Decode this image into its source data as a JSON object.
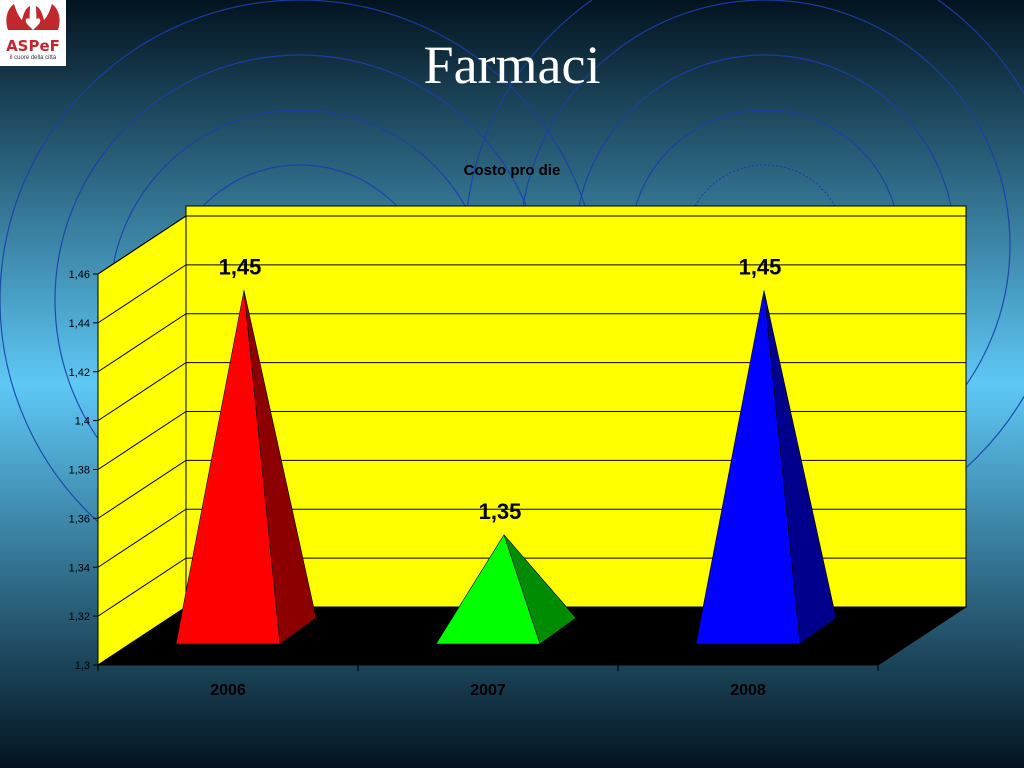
{
  "slide": {
    "title": "Farmaci",
    "logo": {
      "name": "ASPeF",
      "tagline": "il cuore della città"
    },
    "background_colors": {
      "top": "#03131f",
      "middle": "#5ec8f5",
      "bottom": "#03131f"
    }
  },
  "chart_data": {
    "type": "bar",
    "style": "3d-pyramid",
    "title": "Costo  pro die",
    "categories": [
      "2006",
      "2007",
      "2008"
    ],
    "values": [
      1.45,
      1.35,
      1.45
    ],
    "value_labels": [
      "1,45",
      "1,35",
      "1,45"
    ],
    "colors": [
      "#ff0000",
      "#00ff00",
      "#0000ff"
    ],
    "ylim": [
      1.3,
      1.46
    ],
    "yticks": [
      "1,3",
      "1,32",
      "1,34",
      "1,36",
      "1,38",
      "1,4",
      "1,42",
      "1,44",
      "1,46"
    ],
    "xlabel": "",
    "ylabel": "",
    "grid": true,
    "wall_color": "#ffff00",
    "floor_color": "#000000"
  }
}
